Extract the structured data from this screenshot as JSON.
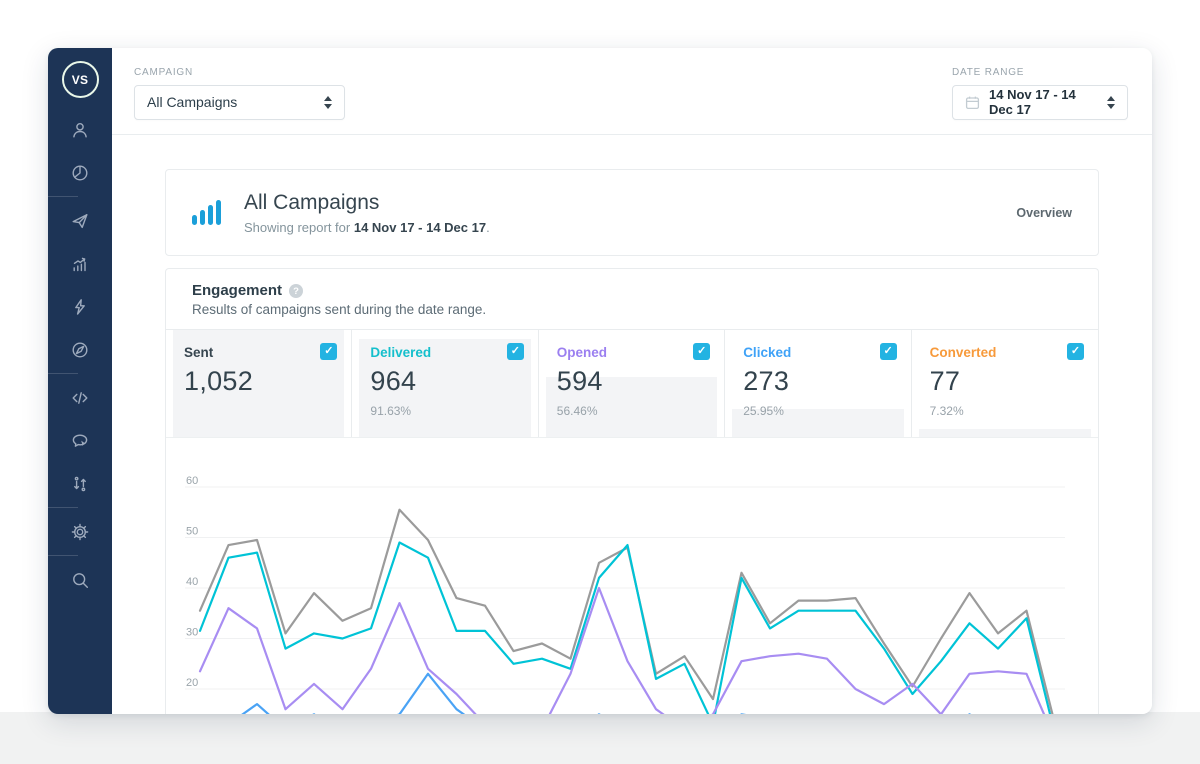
{
  "colors": {
    "sidebar_bg": "#1d3456",
    "logo_green": "#3ec23f",
    "bars_icon_blue": "#1b9fd9",
    "checkbox_cyan": "#23b3e2",
    "stat_fill_gray": "#f3f4f6"
  },
  "sidebar": {
    "logo_text": "VS",
    "items": [
      {
        "name": "contacts",
        "icon": "person-icon"
      },
      {
        "name": "segments",
        "icon": "pie-chart-icon"
      },
      {
        "name": "divider"
      },
      {
        "name": "campaigns",
        "icon": "paper-plane-icon"
      },
      {
        "name": "reports",
        "icon": "chart-growth-icon"
      },
      {
        "name": "automation",
        "icon": "lightning-icon"
      },
      {
        "name": "explore",
        "icon": "compass-icon"
      },
      {
        "name": "divider"
      },
      {
        "name": "developer",
        "icon": "code-icon"
      },
      {
        "name": "messages",
        "icon": "chat-cursor-icon"
      },
      {
        "name": "import-export",
        "icon": "sort-arrows-icon"
      },
      {
        "name": "divider"
      },
      {
        "name": "settings",
        "icon": "gear-icon"
      },
      {
        "name": "divider"
      },
      {
        "name": "search",
        "icon": "search-icon"
      }
    ]
  },
  "topbar": {
    "campaign_label": "CAMPAIGN",
    "campaign_value": "All Campaigns",
    "date_range_label": "DATE RANGE",
    "date_range_value": "14 Nov 17 - 14 Dec 17"
  },
  "overview_card": {
    "title": "All Campaigns",
    "subtitle_prefix": "Showing report for ",
    "subtitle_date": "14 Nov 17 - 14 Dec 17",
    "subtitle_suffix": ".",
    "right_label": "Overview"
  },
  "engagement": {
    "title": "Engagement",
    "help_icon": "?",
    "subtitle": "Results of campaigns sent during the date range.",
    "checkbox_check_icon": "✓",
    "stats": [
      {
        "label": "Sent",
        "value": "1,052",
        "pct": "",
        "color": "#36454f",
        "fill_pct": 100,
        "checked": true
      },
      {
        "label": "Delivered",
        "value": "964",
        "pct": "91.63%",
        "color": "#14bfcc",
        "fill_pct": 91.63,
        "checked": true
      },
      {
        "label": "Opened",
        "value": "594",
        "pct": "56.46%",
        "color": "#9b7ff0",
        "fill_pct": 56.46,
        "checked": true
      },
      {
        "label": "Clicked",
        "value": "273",
        "pct": "25.95%",
        "color": "#3fa2f7",
        "fill_pct": 25.95,
        "checked": true
      },
      {
        "label": "Converted",
        "value": "77",
        "pct": "7.32%",
        "color": "#f79a3b",
        "fill_pct": 7.32,
        "checked": true
      }
    ]
  },
  "chart_data": {
    "type": "line",
    "title": "",
    "xlabel": "",
    "ylabel": "",
    "x_count": 31,
    "x_range_label": "14 Nov 17 - 14 Dec 17",
    "y_top_value": 60,
    "yticks": [
      60,
      50,
      40,
      30,
      20
    ],
    "grid": true,
    "legend_position": "none",
    "series": [
      {
        "name": "Sent",
        "color": "#9b9b9b",
        "values": [
          35.5,
          48.5,
          49.5,
          31,
          39,
          33.5,
          36,
          55.5,
          49.5,
          38,
          36.5,
          27.5,
          29,
          26,
          45,
          48,
          23,
          26.5,
          18,
          43,
          33,
          37.5,
          37.5,
          38,
          29,
          20.5,
          30,
          39,
          31,
          35.5,
          13
        ]
      },
      {
        "name": "Delivered",
        "color": "#00c3d6",
        "values": [
          31.5,
          46,
          47,
          28,
          31,
          30,
          32,
          49,
          46,
          31.5,
          31.5,
          25,
          26,
          24,
          42,
          48.5,
          22,
          25,
          13,
          42,
          32,
          35.5,
          35.5,
          35.5,
          28,
          19,
          25.5,
          33,
          28,
          34,
          11
        ]
      },
      {
        "name": "Opened",
        "color": "#a88df2",
        "values": [
          23.5,
          36,
          32,
          16,
          21,
          16,
          24,
          37,
          24,
          19,
          13,
          10,
          12,
          23,
          40,
          25.5,
          16,
          12,
          15,
          25.5,
          26.5,
          27,
          26,
          20,
          17,
          21,
          15,
          23,
          23.5,
          23,
          10
        ]
      },
      {
        "name": "Clicked",
        "color": "#4aa3f5",
        "values": [
          12,
          13,
          17,
          12,
          15,
          11,
          13,
          15,
          23,
          16,
          12,
          10,
          14,
          11,
          15,
          12,
          10,
          13,
          10,
          15,
          14,
          12,
          13,
          12,
          10,
          13,
          11,
          15,
          12,
          14,
          8
        ]
      }
    ]
  }
}
